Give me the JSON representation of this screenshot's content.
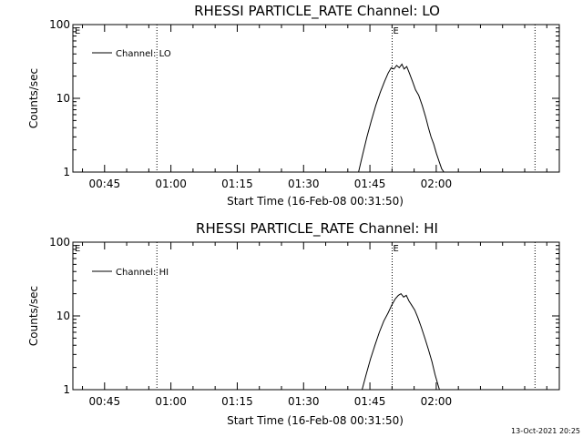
{
  "chart_data": [
    {
      "type": "line",
      "title": "RHESSI PARTICLE_RATE Channel: LO",
      "xlabel": "Start Time (16-Feb-08 00:31:50)",
      "ylabel": "Counts/sec",
      "yscale": "log",
      "ylim": [
        1,
        100
      ],
      "y_tick_labels": [
        "1",
        "10",
        "100"
      ],
      "xlim_minutes": [
        6,
        116
      ],
      "x_tick_labels": [
        "00:45",
        "01:00",
        "01:15",
        "01:30",
        "01:45",
        "02:00"
      ],
      "x_tick_minutes": [
        13.17,
        28.17,
        43.17,
        58.17,
        73.17,
        88.17
      ],
      "legend": {
        "label": "Channel: LO",
        "position": "top-left"
      },
      "markers": [
        {
          "label": "",
          "minute": 25.0
        },
        {
          "label": "E",
          "minute": 78.2
        },
        {
          "label": "",
          "minute": 110.5
        }
      ],
      "series": [
        {
          "name": "Channel: LO",
          "minutes": [
            70.6,
            71.5,
            72.5,
            73.5,
            74.5,
            75.5,
            76.5,
            77.3,
            78.0,
            78.6,
            79.2,
            79.8,
            80.4,
            80.9,
            81.5,
            82.1,
            82.8,
            83.5,
            84.2,
            85.0,
            85.8,
            86.4,
            87.0,
            87.6,
            88.2,
            88.8,
            89.4,
            89.9
          ],
          "values": [
            1.0,
            1.7,
            3.0,
            5.0,
            8.0,
            12,
            17,
            22,
            26,
            25,
            28,
            26,
            29,
            25,
            27,
            22,
            17,
            13,
            11,
            8.0,
            5.5,
            4.0,
            3.0,
            2.4,
            1.8,
            1.4,
            1.1,
            1.0
          ]
        }
      ]
    },
    {
      "type": "line",
      "title": "RHESSI PARTICLE_RATE Channel: HI",
      "xlabel": "Start Time (16-Feb-08 00:31:50)",
      "ylabel": "Counts/sec",
      "yscale": "log",
      "ylim": [
        1,
        100
      ],
      "y_tick_labels": [
        "1",
        "10",
        "100"
      ],
      "xlim_minutes": [
        6,
        116
      ],
      "x_tick_labels": [
        "00:45",
        "01:00",
        "01:15",
        "01:30",
        "01:45",
        "02:00"
      ],
      "x_tick_minutes": [
        13.17,
        28.17,
        43.17,
        58.17,
        73.17,
        88.17
      ],
      "legend": {
        "label": "Channel: HI",
        "position": "top-left"
      },
      "markers": [
        {
          "label": "",
          "minute": 25.0
        },
        {
          "label": "E",
          "minute": 78.2
        },
        {
          "label": "",
          "minute": 110.5
        }
      ],
      "series": [
        {
          "name": "Channel: HI",
          "minutes": [
            71.4,
            72.3,
            73.3,
            74.3,
            75.3,
            76.3,
            77.3,
            78.1,
            78.9,
            79.6,
            80.2,
            80.8,
            81.4,
            82.0,
            82.6,
            83.3,
            84.0,
            84.8,
            85.6,
            86.4,
            87.2,
            87.9,
            88.5,
            88.9
          ],
          "values": [
            1.0,
            1.6,
            2.6,
            4.0,
            6.0,
            8.5,
            11,
            14,
            17,
            19,
            20,
            18,
            19,
            16,
            14,
            12,
            9.5,
            7.0,
            5.0,
            3.5,
            2.4,
            1.6,
            1.2,
            1.0
          ]
        }
      ]
    }
  ],
  "edge_markers": [
    "E",
    "E"
  ],
  "footer": {
    "timestamp": "13-Oct-2021 20:25"
  }
}
